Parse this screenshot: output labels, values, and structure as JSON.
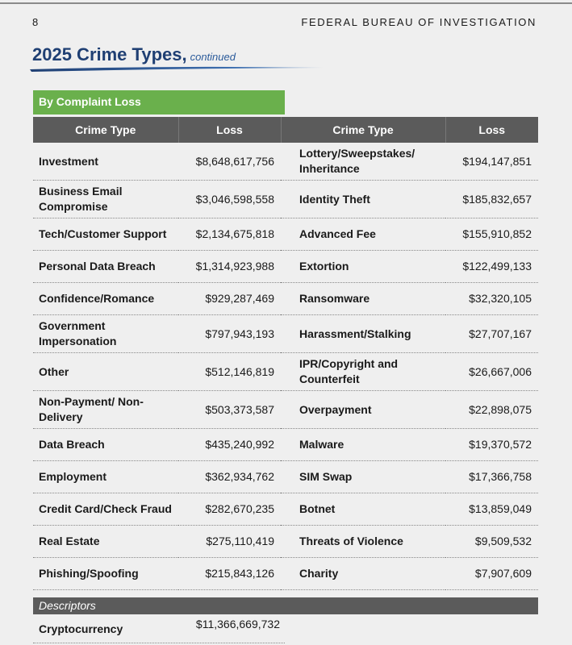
{
  "header": {
    "page_number": "8",
    "organization": "FEDERAL BUREAU OF INVESTIGATION"
  },
  "title": {
    "main": "2025 Crime Types,",
    "sub": "continued"
  },
  "section": "By Complaint Loss",
  "table": {
    "headers": [
      "Crime Type",
      "Loss",
      "Crime Type",
      "Loss"
    ],
    "rows": [
      [
        "Investment",
        "$8,648,617,756",
        "Lottery/Sweepstakes/ Inheritance",
        "$194,147,851"
      ],
      [
        "Business Email Compromise",
        "$3,046,598,558",
        "Identity Theft",
        "$185,832,657"
      ],
      [
        "Tech/Customer Support",
        "$2,134,675,818",
        "Advanced Fee",
        "$155,910,852"
      ],
      [
        "Personal Data Breach",
        "$1,314,923,988",
        "Extortion",
        "$122,499,133"
      ],
      [
        "Confidence/Romance",
        "$929,287,469",
        "Ransomware",
        "$32,320,105"
      ],
      [
        "Government Impersonation",
        "$797,943,193",
        "Harassment/Stalking",
        "$27,707,167"
      ],
      [
        "Other",
        "$512,146,819",
        "IPR/Copyright and Counterfeit",
        "$26,667,006"
      ],
      [
        "Non-Payment/ Non-Delivery",
        "$503,373,587",
        "Overpayment",
        "$22,898,075"
      ],
      [
        "Data Breach",
        "$435,240,992",
        "Malware",
        "$19,370,572"
      ],
      [
        "Employment",
        "$362,934,762",
        "SIM Swap",
        "$17,366,758"
      ],
      [
        "Credit Card/Check Fraud",
        "$282,670,235",
        "Botnet",
        "$13,859,049"
      ],
      [
        "Real Estate",
        "$275,110,419",
        "Threats of Violence",
        "$9,509,532"
      ],
      [
        "Phishing/Spoofing",
        "$215,843,126",
        "Charity",
        "$7,907,609"
      ]
    ]
  },
  "descriptors": {
    "label": "Descriptors",
    "rows": [
      [
        "Cryptocurrency",
        "$11,366,669,732"
      ]
    ]
  }
}
